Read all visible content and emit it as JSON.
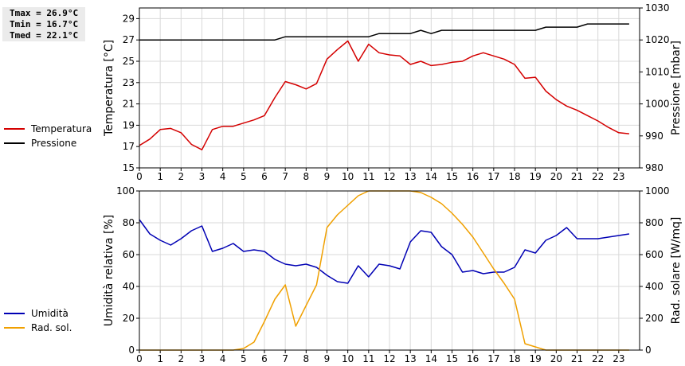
{
  "stats": {
    "tmax": "Tmax = 26.9°C",
    "tmin": "Tmin = 16.7°C",
    "tmed": "Tmed = 22.1°C"
  },
  "legend_top": [
    {
      "label": "Temperatura",
      "color": "#d40000"
    },
    {
      "label": "Pressione",
      "color": "#000000"
    }
  ],
  "legend_bottom": [
    {
      "label": "Umidità",
      "color": "#0000b4"
    },
    {
      "label": "Rad. sol.",
      "color": "#f0a000"
    }
  ],
  "chart_data": [
    {
      "type": "line",
      "xlim": [
        0,
        24
      ],
      "x_ticks": [
        0,
        1,
        2,
        3,
        4,
        5,
        6,
        7,
        8,
        9,
        10,
        11,
        12,
        13,
        14,
        15,
        16,
        17,
        18,
        19,
        20,
        21,
        22,
        23
      ],
      "grid": true,
      "left_axis": {
        "label": "Temperatura [°C]",
        "ylim": [
          15,
          30
        ],
        "ticks": [
          15,
          17,
          19,
          21,
          23,
          25,
          27,
          29
        ]
      },
      "right_axis": {
        "label": "Pressione [mbar]",
        "ylim": [
          980,
          1030
        ],
        "ticks": [
          980,
          990,
          1000,
          1010,
          1020,
          1030
        ]
      },
      "series": [
        {
          "name": "Temperatura",
          "axis": "left",
          "color": "#d40000",
          "x": [
            0,
            0.5,
            1,
            1.5,
            2,
            2.5,
            3,
            3.5,
            4,
            4.5,
            5,
            5.5,
            6,
            6.5,
            7,
            7.5,
            8,
            8.5,
            9,
            9.5,
            10,
            10.5,
            11,
            11.5,
            12,
            12.5,
            13,
            13.5,
            14,
            14.5,
            15,
            15.5,
            16,
            16.5,
            17,
            17.5,
            18,
            18.5,
            19,
            19.5,
            20,
            20.5,
            21,
            21.5,
            22,
            22.5,
            23,
            23.5
          ],
          "y": [
            17.1,
            17.7,
            18.6,
            18.7,
            18.3,
            17.2,
            16.7,
            18.6,
            18.9,
            18.9,
            19.2,
            19.5,
            19.9,
            21.6,
            23.1,
            22.8,
            22.4,
            22.9,
            25.2,
            26.1,
            26.9,
            25.0,
            26.6,
            25.8,
            25.6,
            25.5,
            24.7,
            25.0,
            24.6,
            24.7,
            24.9,
            25.0,
            25.5,
            25.8,
            25.5,
            25.2,
            24.7,
            23.4,
            23.5,
            22.2,
            21.4,
            20.8,
            20.4,
            19.9,
            19.4,
            18.8,
            18.3,
            18.2
          ]
        },
        {
          "name": "Pressione",
          "axis": "right",
          "color": "#000000",
          "x": [
            0,
            0.5,
            1,
            1.5,
            2,
            2.5,
            3,
            3.5,
            4,
            4.5,
            5,
            5.5,
            6,
            6.5,
            7,
            7.5,
            8,
            8.5,
            9,
            9.5,
            10,
            10.5,
            11,
            11.5,
            12,
            12.5,
            13,
            13.5,
            14,
            14.5,
            15,
            15.5,
            16,
            16.5,
            17,
            17.5,
            18,
            18.5,
            19,
            19.5,
            20,
            20.5,
            21,
            21.5,
            22,
            22.5,
            23,
            23.5
          ],
          "y": [
            1020,
            1020,
            1020,
            1020,
            1020,
            1020,
            1020,
            1020,
            1020,
            1020,
            1020,
            1020,
            1020,
            1020,
            1021,
            1021,
            1021,
            1021,
            1021,
            1021,
            1021,
            1021,
            1021,
            1022,
            1022,
            1022,
            1022,
            1023,
            1022,
            1023,
            1023,
            1023,
            1023,
            1023,
            1023,
            1023,
            1023,
            1023,
            1023,
            1024,
            1024,
            1024,
            1024,
            1025,
            1025,
            1025,
            1025,
            1025
          ]
        }
      ]
    },
    {
      "type": "line",
      "xlim": [
        0,
        24
      ],
      "x_ticks": [
        0,
        1,
        2,
        3,
        4,
        5,
        6,
        7,
        8,
        9,
        10,
        11,
        12,
        13,
        14,
        15,
        16,
        17,
        18,
        19,
        20,
        21,
        22,
        23
      ],
      "grid": true,
      "left_axis": {
        "label": "Umidità relativa [%]",
        "ylim": [
          0,
          100
        ],
        "ticks": [
          0,
          20,
          40,
          60,
          80,
          100
        ]
      },
      "right_axis": {
        "label": "Rad. solare [W/mq]",
        "ylim": [
          0,
          1000
        ],
        "ticks": [
          0,
          200,
          400,
          600,
          800,
          1000
        ]
      },
      "series": [
        {
          "name": "Umidità",
          "axis": "left",
          "color": "#0000b4",
          "x": [
            0,
            0.5,
            1,
            1.5,
            2,
            2.5,
            3,
            3.5,
            4,
            4.5,
            5,
            5.5,
            6,
            6.5,
            7,
            7.5,
            8,
            8.5,
            9,
            9.5,
            10,
            10.5,
            11,
            11.5,
            12,
            12.5,
            13,
            13.5,
            14,
            14.5,
            15,
            15.5,
            16,
            16.5,
            17,
            17.5,
            18,
            18.5,
            19,
            19.5,
            20,
            20.5,
            21,
            21.5,
            22,
            22.5,
            23,
            23.5
          ],
          "y": [
            82,
            73,
            69,
            66,
            70,
            75,
            78,
            62,
            64,
            67,
            62,
            63,
            62,
            57,
            54,
            53,
            54,
            52,
            47,
            43,
            42,
            53,
            46,
            54,
            53,
            51,
            68,
            75,
            74,
            65,
            60,
            49,
            50,
            48,
            49,
            49,
            52,
            63,
            61,
            69,
            72,
            77,
            70,
            70,
            70,
            71,
            72,
            73
          ]
        },
        {
          "name": "Rad. sol.",
          "axis": "right",
          "color": "#f0a000",
          "x": [
            0,
            0.5,
            1,
            1.5,
            2,
            2.5,
            3,
            3.5,
            4,
            4.5,
            5,
            5.5,
            6,
            6.5,
            7,
            7.5,
            8,
            8.5,
            9,
            9.5,
            10,
            10.5,
            11,
            11.5,
            12,
            12.5,
            13,
            13.5,
            14,
            14.5,
            15,
            15.5,
            16,
            16.5,
            17,
            17.5,
            18,
            18.5,
            19,
            19.5,
            20,
            20.5,
            21,
            21.5,
            22,
            22.5,
            23,
            23.5
          ],
          "y": [
            0,
            0,
            0,
            0,
            0,
            0,
            0,
            0,
            0,
            0,
            10,
            50,
            180,
            320,
            410,
            150,
            280,
            410,
            770,
            850,
            910,
            970,
            1000,
            1000,
            1000,
            1000,
            1000,
            990,
            960,
            920,
            860,
            790,
            710,
            610,
            510,
            420,
            320,
            40,
            20,
            0,
            0,
            0,
            0,
            0,
            0,
            0,
            0,
            0
          ]
        }
      ]
    }
  ]
}
